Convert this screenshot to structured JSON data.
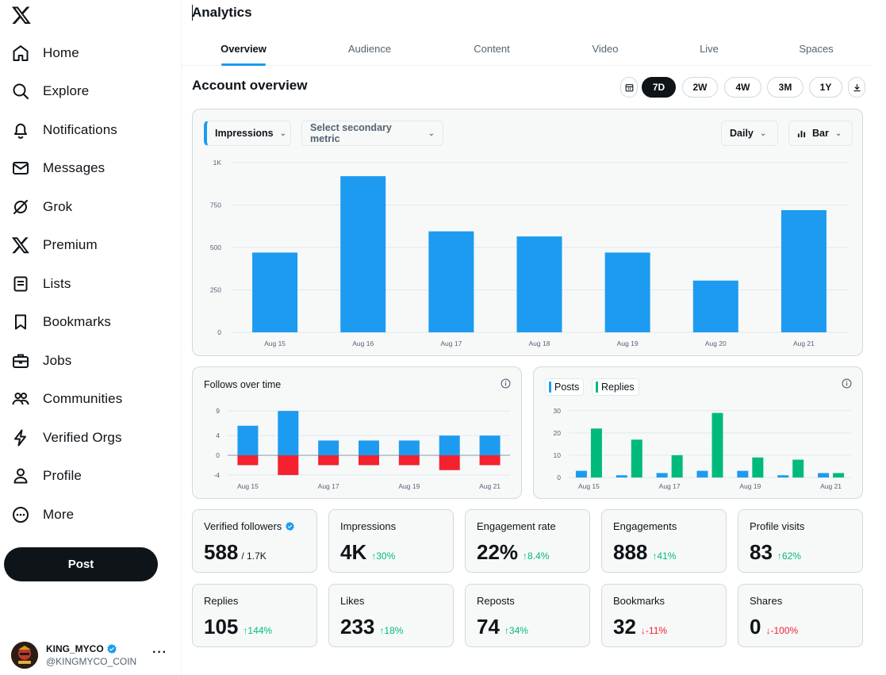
{
  "sidebar": {
    "logo_icon": "x-logo-icon",
    "items": [
      {
        "label": "Home",
        "icon": "home-icon"
      },
      {
        "label": "Explore",
        "icon": "search-icon"
      },
      {
        "label": "Notifications",
        "icon": "bell-icon"
      },
      {
        "label": "Messages",
        "icon": "envelope-icon"
      },
      {
        "label": "Grok",
        "icon": "grok-icon"
      },
      {
        "label": "Premium",
        "icon": "x-logo-icon"
      },
      {
        "label": "Lists",
        "icon": "list-icon"
      },
      {
        "label": "Bookmarks",
        "icon": "bookmark-icon"
      },
      {
        "label": "Jobs",
        "icon": "briefcase-icon"
      },
      {
        "label": "Communities",
        "icon": "people-icon"
      },
      {
        "label": "Verified Orgs",
        "icon": "lightning-icon"
      },
      {
        "label": "Profile",
        "icon": "person-icon"
      },
      {
        "label": "More",
        "icon": "more-circle-icon"
      }
    ],
    "post_label": "Post",
    "account": {
      "name": "KING_MYCO",
      "handle": "@KINGMYCO_COIN",
      "verified": true,
      "more": "···"
    }
  },
  "header": {
    "title": "Analytics",
    "tabs": [
      {
        "label": "Overview",
        "active": true
      },
      {
        "label": "Audience",
        "active": false
      },
      {
        "label": "Content",
        "active": false
      },
      {
        "label": "Video",
        "active": false
      },
      {
        "label": "Live",
        "active": false
      },
      {
        "label": "Spaces",
        "active": false
      }
    ]
  },
  "overview": {
    "title": "Account overview",
    "ranges": [
      "7D",
      "2W",
      "4W",
      "3M",
      "1Y"
    ],
    "active_range": "7D",
    "primary_metric": "Impressions",
    "secondary_metric": "Select secondary metric",
    "interval": "Daily",
    "chart_type_label": "Bar"
  },
  "colors": {
    "accent": "#1d9bf0",
    "green": "#00ba7c",
    "red": "#f4212e",
    "dark": "#0f1419"
  },
  "chart_data": [
    {
      "type": "bar",
      "name": "impressions",
      "categories": [
        "Aug 15",
        "Aug 16",
        "Aug 17",
        "Aug 18",
        "Aug 19",
        "Aug 20",
        "Aug 21"
      ],
      "values": [
        470,
        920,
        595,
        565,
        470,
        305,
        720
      ],
      "yticks": [
        0,
        250,
        500,
        750,
        1000
      ],
      "ytick_labels": [
        "0",
        "250",
        "500",
        "750",
        "1K"
      ],
      "ylim": [
        0,
        1000
      ],
      "grid": true
    },
    {
      "type": "bar",
      "title": "Follows over time",
      "categories": [
        "Aug 15",
        "Aug 16",
        "Aug 17",
        "Aug 18",
        "Aug 19",
        "Aug 20",
        "Aug 21"
      ],
      "xtick_labels": [
        "Aug 15",
        "",
        "Aug 17",
        "",
        "Aug 19",
        "",
        "Aug 21"
      ],
      "series": [
        {
          "values": [
            6,
            9,
            3,
            3,
            3,
            4,
            4
          ],
          "color": "#1d9bf0"
        },
        {
          "values": [
            -2,
            -4,
            -2,
            -2,
            -2,
            -3,
            -2
          ],
          "color": "#f4212e"
        }
      ],
      "yticks": [
        -4,
        0,
        4,
        9
      ],
      "ylim": [
        -4.5,
        9.5
      ],
      "grid": true
    },
    {
      "type": "bar",
      "categories": [
        "Aug 15",
        "Aug 16",
        "Aug 17",
        "Aug 18",
        "Aug 19",
        "Aug 20",
        "Aug 21"
      ],
      "xtick_labels": [
        "Aug 15",
        "",
        "Aug 17",
        "",
        "Aug 19",
        "",
        "Aug 21"
      ],
      "series": [
        {
          "name": "Posts",
          "values": [
            3,
            1,
            2,
            3,
            3,
            1,
            2
          ],
          "color": "#1d9bf0"
        },
        {
          "name": "Replies",
          "values": [
            22,
            17,
            10,
            29,
            9,
            8,
            2
          ],
          "color": "#00ba7c"
        }
      ],
      "yticks": [
        0,
        10,
        20,
        30
      ],
      "ylim": [
        0,
        31
      ],
      "grid": true
    }
  ],
  "stats": [
    {
      "label": "Verified followers",
      "value": "588",
      "sub": "/ 1.7K",
      "change": "",
      "dir": "",
      "verified": true
    },
    {
      "label": "Impressions",
      "value": "4K",
      "sub": "",
      "change": "↑30%",
      "dir": "up"
    },
    {
      "label": "Engagement rate",
      "value": "22%",
      "sub": "",
      "change": "↑8.4%",
      "dir": "up"
    },
    {
      "label": "Engagements",
      "value": "888",
      "sub": "",
      "change": "↑41%",
      "dir": "up"
    },
    {
      "label": "Profile visits",
      "value": "83",
      "sub": "",
      "change": "↑62%",
      "dir": "up"
    },
    {
      "label": "Replies",
      "value": "105",
      "sub": "",
      "change": "↑144%",
      "dir": "up"
    },
    {
      "label": "Likes",
      "value": "233",
      "sub": "",
      "change": "↑18%",
      "dir": "up"
    },
    {
      "label": "Reposts",
      "value": "74",
      "sub": "",
      "change": "↑34%",
      "dir": "up"
    },
    {
      "label": "Bookmarks",
      "value": "32",
      "sub": "",
      "change": "↓-11%",
      "dir": "down"
    },
    {
      "label": "Shares",
      "value": "0",
      "sub": "",
      "change": "↓-100%",
      "dir": "down"
    }
  ]
}
